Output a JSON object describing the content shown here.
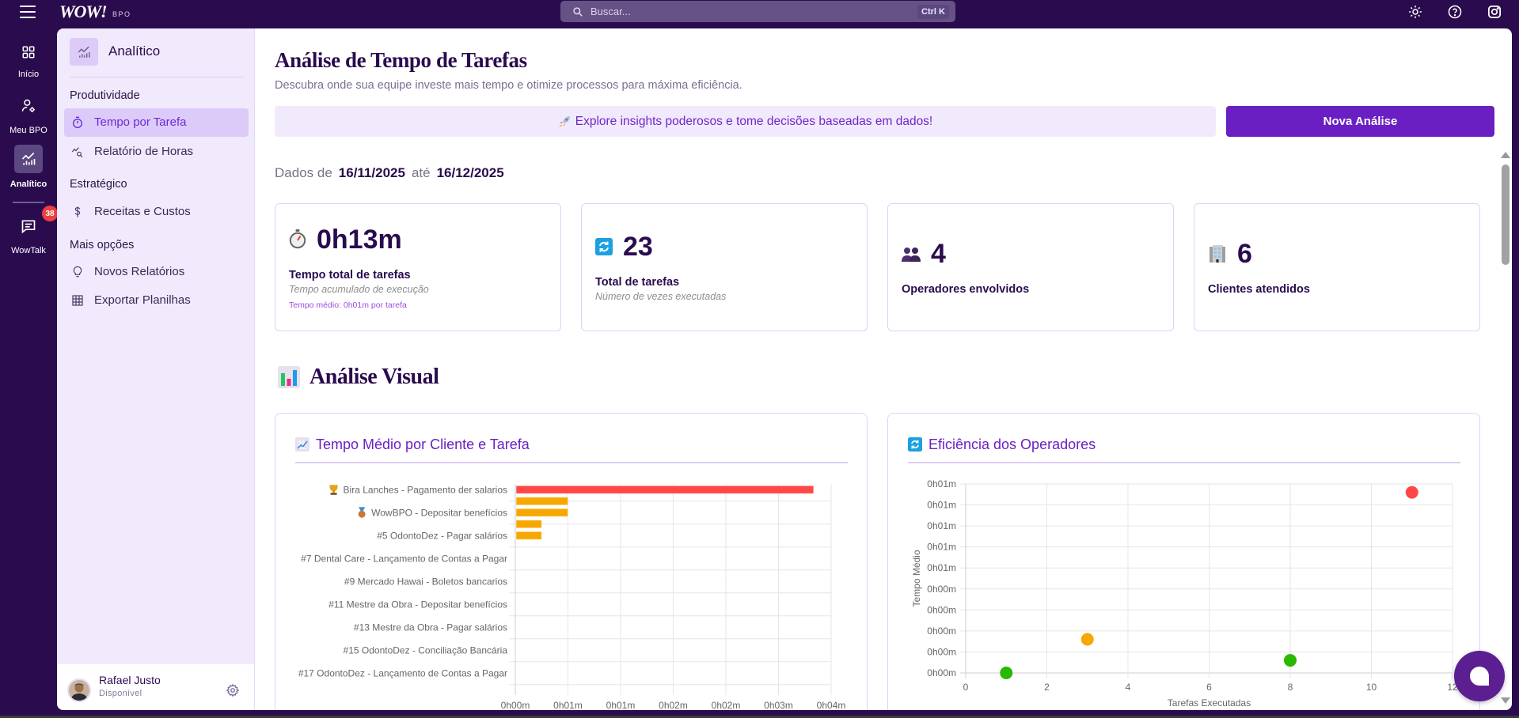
{
  "topbar": {
    "logo": "WOW!",
    "logo_sub": "BPO",
    "search": {
      "placeholder": "Buscar...",
      "shortcut": "Ctrl K"
    },
    "right_icons": [
      "theme-toggle-icon",
      "help-icon",
      "instagram-icon"
    ]
  },
  "rail": {
    "items": [
      {
        "label": "Início",
        "icon": "dashboard-grid-icon"
      },
      {
        "label": "Meu BPO",
        "icon": "user-settings-icon"
      },
      {
        "label": "Analítico",
        "icon": "analytics-icon",
        "active": true
      },
      {
        "label": "WowTalk",
        "icon": "chat-icon",
        "badge": "38"
      }
    ]
  },
  "sidebar": {
    "title": "Analítico",
    "sections": [
      {
        "label": "Produtividade",
        "items": [
          {
            "label": "Tempo por Tarefa",
            "icon": "timer-icon",
            "active": true
          },
          {
            "label": "Relatório de Horas",
            "icon": "chart-search-icon"
          }
        ]
      },
      {
        "label": "Estratégico",
        "items": [
          {
            "label": "Receitas e Custos",
            "icon": "dollar-icon"
          }
        ]
      },
      {
        "label": "Mais opções",
        "items": [
          {
            "label": "Novos Relatórios",
            "icon": "lightbulb-icon"
          },
          {
            "label": "Exportar Planilhas",
            "icon": "table-icon"
          }
        ]
      }
    ],
    "user": {
      "name": "Rafael Justo",
      "status": "Disponível"
    }
  },
  "main": {
    "title": "Análise de Tempo de Tarefas",
    "subtitle": "Descubra onde sua equipe investe mais tempo e otimize processos para máxima eficiência.",
    "banner": {
      "icon": "rocket-icon",
      "text": "Explore insights poderosos e tome decisões baseadas em dados!"
    },
    "new_analysis_button": "Nova Análise",
    "date_range": {
      "prefix": "Dados de",
      "start": "16/11/2025",
      "separator": "até",
      "end": "16/12/2025"
    },
    "stats": [
      {
        "icon": "stopwatch-icon",
        "value": "0h13m",
        "label": "Tempo total de tarefas",
        "sub": "Tempo acumulado de execução",
        "extra": "Tempo médio: 0h01m por tarefa"
      },
      {
        "icon": "refresh-icon",
        "value": "23",
        "label": "Total de tarefas",
        "sub": "Número de vezes executadas"
      },
      {
        "icon": "people-icon",
        "value": "4",
        "label": "Operadores envolvidos"
      },
      {
        "icon": "building-icon",
        "value": "6",
        "label": "Clientes atendidos"
      }
    ],
    "section_title": "Análise Visual",
    "section_icon": "bar-chart-icon"
  },
  "colors": {
    "brand_dark": "#2a0c4e",
    "accent": "#6a1fc2",
    "red": "#ff4747",
    "orange": "#f7a800",
    "green": "#2ab800"
  },
  "chart_data": [
    {
      "type": "bar",
      "orientation": "horizontal",
      "title": "Tempo Médio por Cliente e Tarefa",
      "title_icon": "chart-increasing-icon",
      "value_unit": "seconds",
      "xlabel": "",
      "ylabel": "",
      "xlim": [
        0,
        216
      ],
      "xticks": [
        0,
        36,
        72,
        108,
        144,
        180,
        216
      ],
      "xtick_labels": [
        "0h00m",
        "0h01m",
        "0h01m",
        "0h02m",
        "0h02m",
        "0h03m",
        "0h04m"
      ],
      "categories": [
        "Bira Lanches - Pagamento der salarios",
        "",
        "WowBPO - Depositar benefícios",
        "",
        "#5 OdontoDez - Pagar salários",
        "",
        "#7 Dental Care - Lançamento de Contas a Pagar",
        "",
        "#9 Mercado Hawai - Boletos bancarios",
        "",
        "#11 Mestre da Obra - Depositar benefícios",
        "",
        "#13 Mestre da Obra - Pagar salários",
        "",
        "#15 OdontoDez - Conciliação Bancária",
        "",
        "#17 OdontoDez - Lançamento de Contas a Pagar",
        ""
      ],
      "badges": [
        "trophy",
        null,
        "bronze-medal",
        null,
        null,
        null,
        null,
        null,
        null,
        null,
        null,
        null,
        null,
        null,
        null,
        null,
        null,
        null
      ],
      "values": [
        204,
        36,
        36,
        18,
        18,
        0,
        0,
        0,
        0,
        0,
        0,
        0,
        0,
        0,
        0,
        0,
        0,
        0
      ],
      "colors": [
        "#ff4747",
        "#f7a800",
        "#f7a800",
        "#f7a800",
        "#f7a800",
        "#f7a800",
        "#f7a800",
        "#f7a800",
        "#f7a800",
        "#f7a800",
        "#f7a800",
        "#f7a800",
        "#f7a800",
        "#f7a800",
        "#f7a800",
        "#f7a800",
        "#f7a800",
        "#f7a800"
      ],
      "grid": true,
      "legend": "none"
    },
    {
      "type": "scatter",
      "title": "Eficiência dos Operadores",
      "title_icon": "refresh-icon",
      "xlabel": "Tarefas Executadas",
      "ylabel": "Tempo Médio",
      "y_unit": "seconds",
      "xlim": [
        0,
        12
      ],
      "xticks": [
        0,
        2,
        4,
        6,
        8,
        10,
        12
      ],
      "ylim": [
        5,
        50
      ],
      "yticks": [
        5,
        10,
        15,
        20,
        25,
        30,
        35,
        40,
        45,
        50
      ],
      "ytick_labels": [
        "0h00m",
        "0h00m",
        "0h00m",
        "0h00m",
        "0h00m",
        "0h01m",
        "0h01m",
        "0h01m",
        "0h01m",
        "0h01m"
      ],
      "points": [
        {
          "x": 1,
          "y": 5,
          "color": "#2ab800"
        },
        {
          "x": 3,
          "y": 13,
          "color": "#f7a800"
        },
        {
          "x": 8,
          "y": 8,
          "color": "#2ab800"
        },
        {
          "x": 11,
          "y": 48,
          "color": "#ff4747"
        }
      ],
      "grid": true,
      "legend": "none"
    }
  ]
}
